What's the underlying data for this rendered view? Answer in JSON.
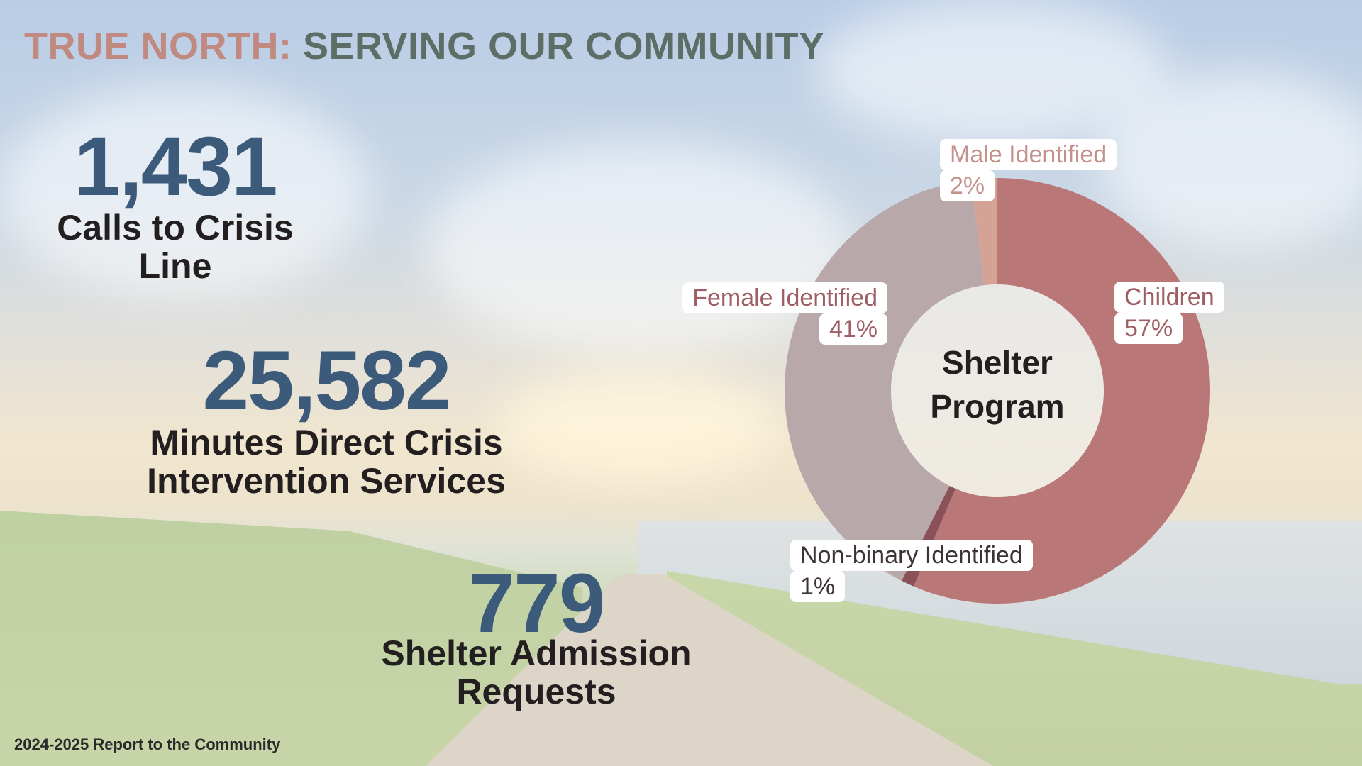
{
  "title": {
    "part1": "TRUE NORTH:",
    "part2": "SERVING OUR COMMUNITY"
  },
  "stats": [
    {
      "value": "1,431",
      "caption_line1": "Calls to Crisis",
      "caption_line2": "Line"
    },
    {
      "value": "25,582",
      "caption_line1": "Minutes Direct Crisis",
      "caption_line2": "Intervention Services"
    },
    {
      "value": "779",
      "caption_line1": "Shelter Admission",
      "caption_line2": "Requests"
    }
  ],
  "footer": "2024-2025 Report to the Community",
  "chart_data": {
    "type": "pie",
    "donut": true,
    "center_label_line1": "Shelter",
    "center_label_line2": "Program",
    "slices": [
      {
        "name": "Children",
        "value": 57,
        "label": "57%",
        "color": "#b97777"
      },
      {
        "name": "Non-binary Identified",
        "value": 1,
        "label": "1%",
        "color": "#8a5258"
      },
      {
        "name": "Female Identified",
        "value": 41,
        "label": "41%",
        "color": "#b9a8aa"
      },
      {
        "name": "Male Identified",
        "value": 2,
        "label": "2%",
        "color": "#d4a396"
      }
    ]
  }
}
